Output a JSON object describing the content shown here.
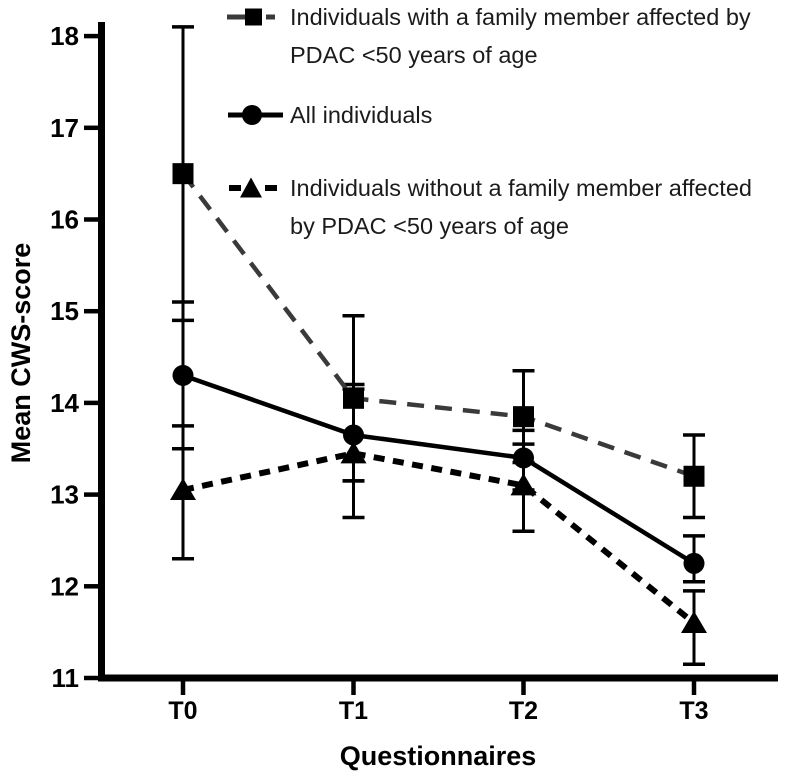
{
  "chart_data": {
    "type": "line",
    "title": "",
    "xlabel": "Questionnaires",
    "ylabel": "Mean CWS-score",
    "categories": [
      "T0",
      "T1",
      "T2",
      "T3"
    ],
    "y_ticks": [
      11,
      12,
      13,
      14,
      15,
      16,
      17,
      18
    ],
    "ylim": [
      11,
      18.5
    ],
    "grid": false,
    "legend_position": "top-right-inside",
    "error_bars": true,
    "series": [
      {
        "name": "Individuals with a family member affected by PDAC <50 years of age",
        "marker": "square",
        "line_style": "dashed",
        "color": "#3a3a3a",
        "values": [
          16.5,
          14.05,
          13.85,
          13.2
        ],
        "err_high": [
          18.1,
          14.95,
          14.35,
          13.65
        ],
        "err_low": [
          14.9,
          13.15,
          13.35,
          12.75
        ]
      },
      {
        "name": "All individuals",
        "marker": "circle",
        "line_style": "solid",
        "color": "#000000",
        "values": [
          14.3,
          13.65,
          13.4,
          12.25
        ],
        "err_high": [
          15.1,
          14.15,
          13.7,
          12.55
        ],
        "err_low": [
          13.5,
          13.15,
          13.05,
          12.05
        ]
      },
      {
        "name": "Individuals without a family member affected by PDAC <50 years of age",
        "marker": "triangle",
        "line_style": "dashed-short",
        "color": "#000000",
        "values": [
          13.05,
          13.45,
          13.1,
          11.6
        ],
        "err_high": [
          13.75,
          14.2,
          13.55,
          11.95
        ],
        "err_low": [
          12.3,
          12.75,
          12.6,
          11.15
        ]
      }
    ]
  },
  "legend": {
    "items": [
      {
        "marker": "square-dashed",
        "lines": [
          "Individuals with a family member affected by",
          "PDAC <50 years of age"
        ]
      },
      {
        "marker": "circle-solid",
        "lines": [
          "All individuals",
          ""
        ]
      },
      {
        "marker": "triangle-dashed",
        "lines": [
          "Individuals without a family member affected",
          "by PDAC <50 years of age"
        ]
      }
    ]
  },
  "colors": {
    "axis": "#000000",
    "series_square_line": "#3a3a3a",
    "series_circle_line": "#000000",
    "series_triangle_line": "#000000",
    "marker_fill": "#000000",
    "text": "#1b1b1b",
    "background": "#ffffff"
  }
}
